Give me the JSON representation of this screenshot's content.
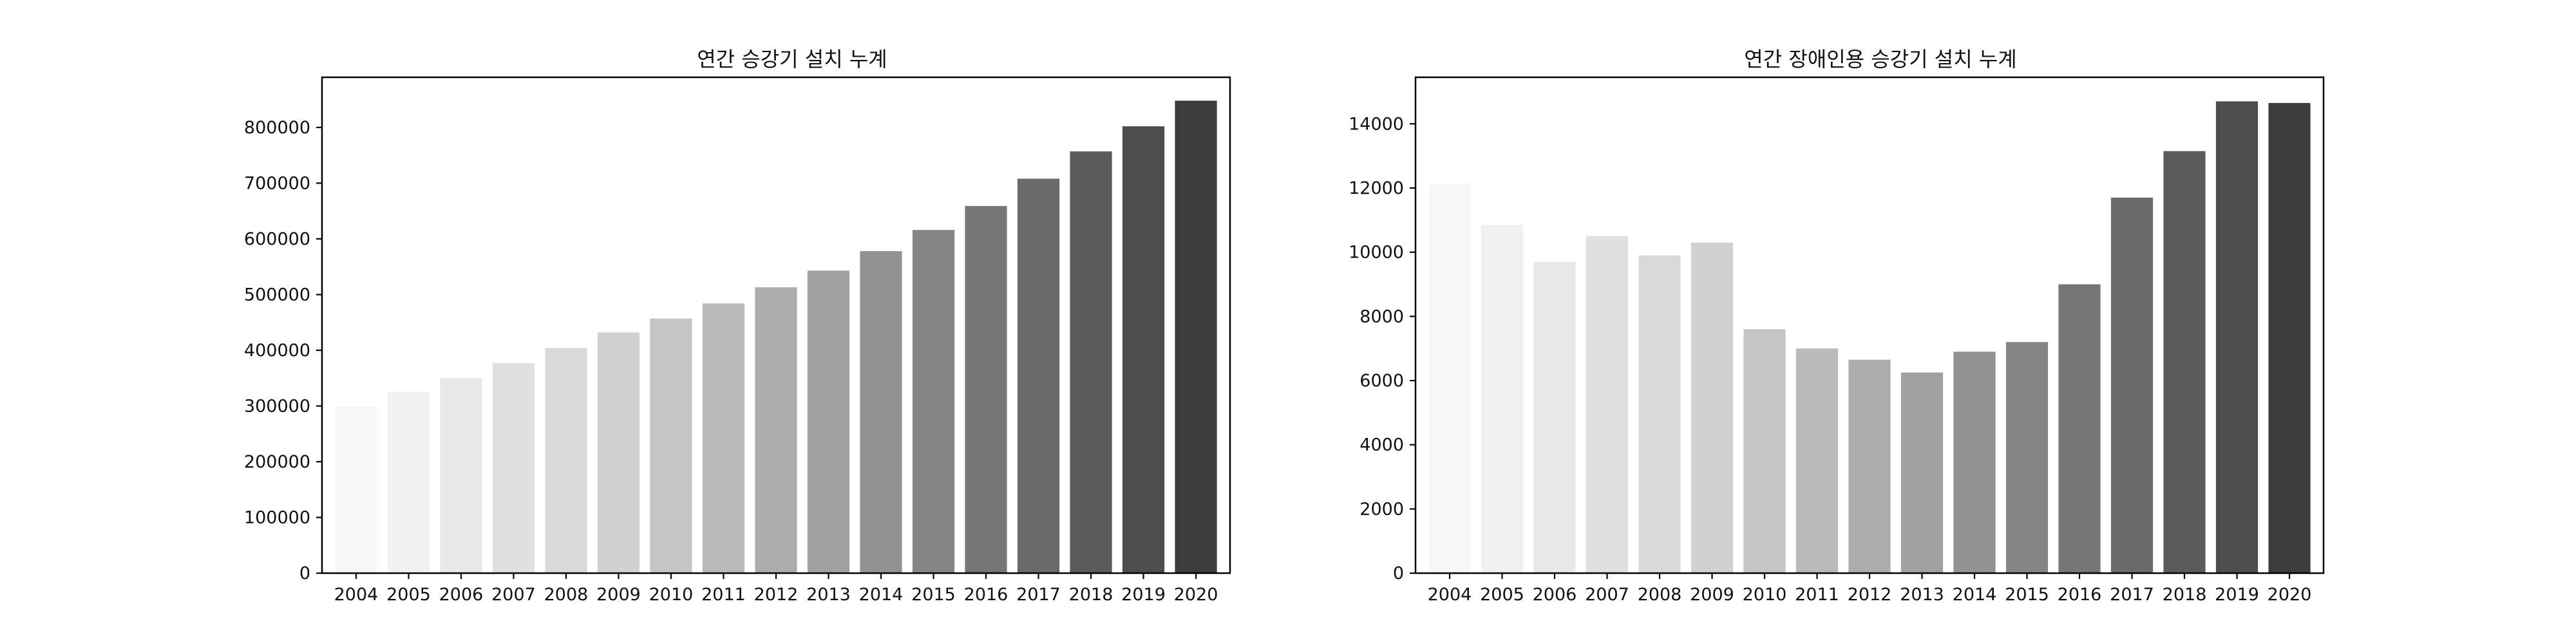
{
  "chart_data": [
    {
      "type": "bar",
      "title": "연간 승강기 설치 누계",
      "xlabel": "",
      "ylabel": "",
      "categories": [
        "2004",
        "2005",
        "2006",
        "2007",
        "2008",
        "2009",
        "2010",
        "2011",
        "2012",
        "2013",
        "2014",
        "2015",
        "2016",
        "2017",
        "2018",
        "2019",
        "2020"
      ],
      "values": [
        298000,
        326000,
        350000,
        377000,
        404000,
        432000,
        457000,
        484000,
        513000,
        543000,
        578000,
        616000,
        659000,
        708000,
        757000,
        802000,
        848000
      ],
      "ylim": [
        0,
        890000
      ],
      "yticks": [
        0,
        100000,
        200000,
        300000,
        400000,
        500000,
        600000,
        700000,
        800000
      ],
      "grid": false,
      "colors": [
        "#f7f7f7",
        "#f0f0f0",
        "#e8e8e8",
        "#e0e0e0",
        "#d9d9d9",
        "#d1d1d1",
        "#c5c5c5",
        "#b9b9b9",
        "#acacac",
        "#a0a0a0",
        "#929292",
        "#858585",
        "#767676",
        "#696969",
        "#5b5b5b",
        "#4d4d4d",
        "#3c3c3c"
      ]
    },
    {
      "type": "bar",
      "title": "연간 장애인용 승강기 설치 누계",
      "xlabel": "",
      "ylabel": "",
      "categories": [
        "2004",
        "2005",
        "2006",
        "2007",
        "2008",
        "2009",
        "2010",
        "2011",
        "2012",
        "2013",
        "2014",
        "2015",
        "2016",
        "2017",
        "2018",
        "2019",
        "2020"
      ],
      "values": [
        12150,
        10850,
        9700,
        10500,
        9900,
        10300,
        7600,
        7000,
        6650,
        6250,
        6900,
        7200,
        9000,
        11700,
        13150,
        14700,
        14650
      ],
      "ylim": [
        0,
        15450
      ],
      "yticks": [
        0,
        2000,
        4000,
        6000,
        8000,
        10000,
        12000,
        14000
      ],
      "grid": false,
      "colors": [
        "#f7f7f7",
        "#f0f0f0",
        "#e8e8e8",
        "#e0e0e0",
        "#d9d9d9",
        "#d1d1d1",
        "#c5c5c5",
        "#b9b9b9",
        "#acacac",
        "#a0a0a0",
        "#929292",
        "#858585",
        "#767676",
        "#696969",
        "#5b5b5b",
        "#4d4d4d",
        "#3c3c3c"
      ]
    }
  ]
}
